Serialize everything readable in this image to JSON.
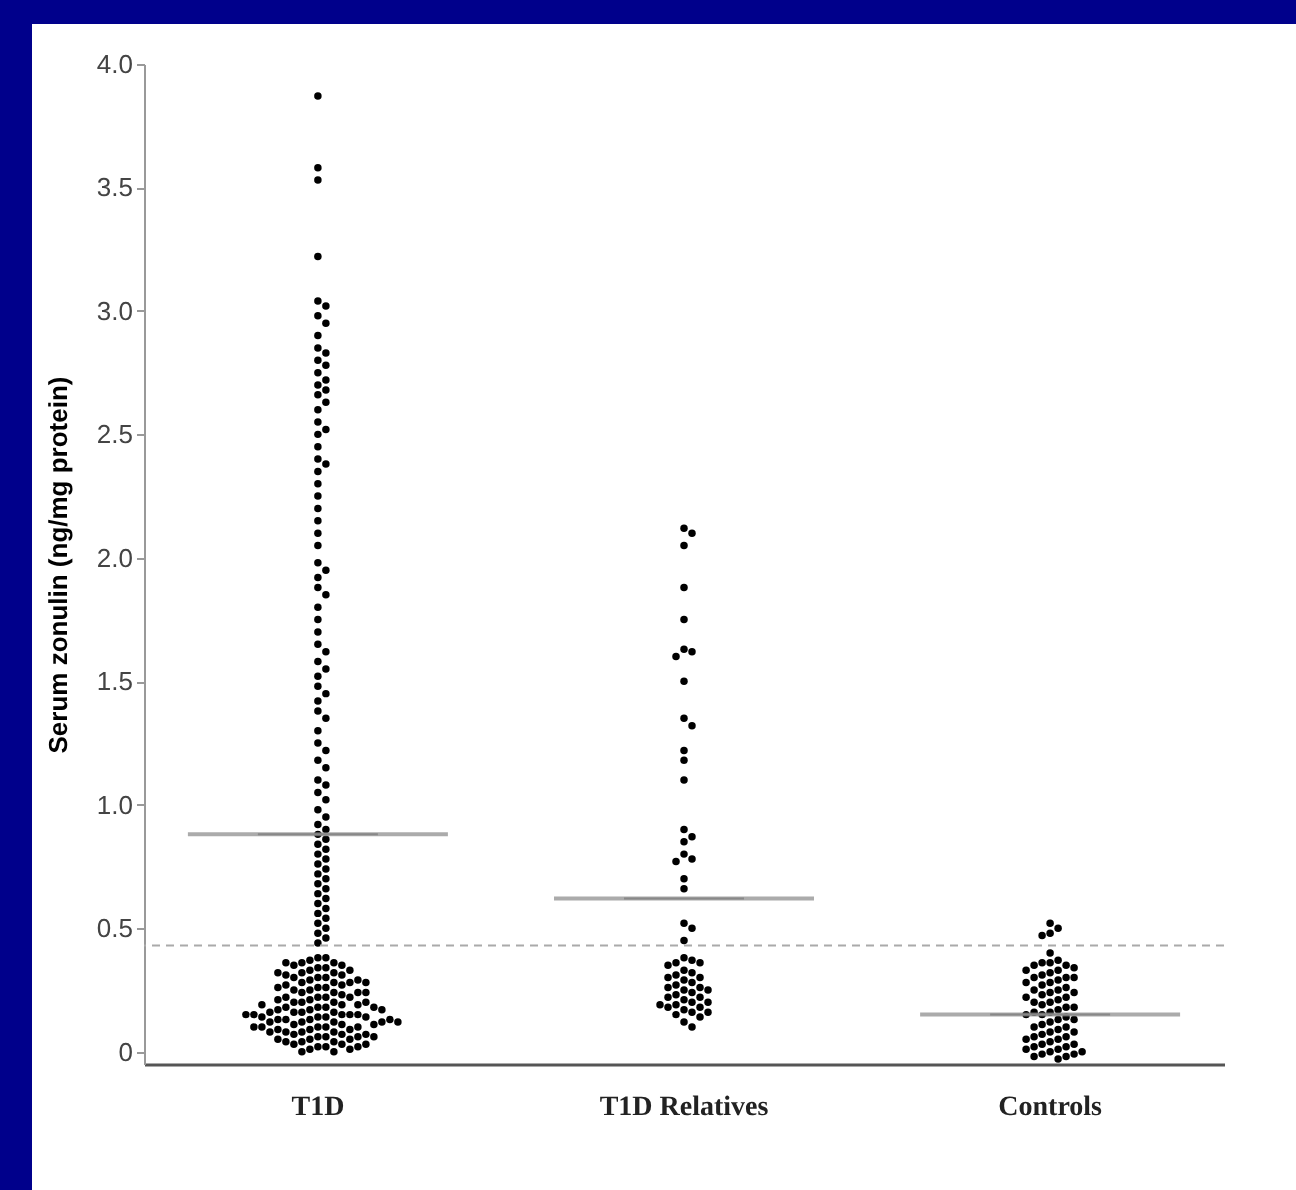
{
  "chart_data": {
    "type": "scatter",
    "ylabel": "Serum zonulin (ng/mg protein)",
    "categories": [
      "T1D",
      "T1D Relatives",
      "Controls"
    ],
    "ylim": [
      -0.05,
      4.0
    ],
    "yticks": [
      0,
      {
        "value": 0.5,
        "label": "0.5"
      },
      {
        "value": 1,
        "label": "1.0"
      },
      {
        "value": 1.5,
        "label": "1.5"
      },
      {
        "value": 2,
        "label": "2.0"
      },
      {
        "value": 2.5,
        "label": "2.5"
      },
      {
        "value": 3,
        "label": "3.0"
      },
      {
        "value": 3.5,
        "label": "3.5"
      },
      {
        "value": 4,
        "label": "4.0"
      }
    ],
    "marker": "circle",
    "ref_lines": [
      {
        "axis": "y",
        "value": 0.43,
        "label": null,
        "color": "#aaaaaa",
        "line_style": "dashed"
      }
    ],
    "series": [
      {
        "color": "#000000",
        "x": [
          "T1D",
          "T1D",
          "T1D",
          "T1D",
          "T1D",
          "T1D",
          "T1D",
          "T1D",
          "T1D",
          "T1D",
          "T1D",
          "T1D",
          "T1D",
          "T1D",
          "T1D",
          "T1D",
          "T1D",
          "T1D",
          "T1D",
          "T1D",
          "T1D",
          "T1D",
          "T1D",
          "T1D",
          "T1D",
          "T1D",
          "T1D",
          "T1D",
          "T1D",
          "T1D",
          "T1D",
          "T1D",
          "T1D",
          "T1D",
          "T1D",
          "T1D",
          "T1D",
          "T1D",
          "T1D",
          "T1D",
          "T1D",
          "T1D",
          "T1D",
          "T1D",
          "T1D",
          "T1D",
          "T1D",
          "T1D",
          "T1D",
          "T1D",
          "T1D",
          "T1D",
          "T1D",
          "T1D",
          "T1D",
          "T1D",
          "T1D",
          "T1D",
          "T1D",
          "T1D",
          "T1D",
          "T1D",
          "T1D",
          "T1D",
          "T1D",
          "T1D",
          "T1D",
          "T1D",
          "T1D",
          "T1D",
          "T1D",
          "T1D",
          "T1D",
          "T1D",
          "T1D",
          "T1D",
          "T1D",
          "T1D",
          "T1D",
          "T1D",
          "T1D",
          "T1D",
          "T1D",
          "T1D",
          "T1D",
          "T1D",
          "T1D",
          "T1D",
          "T1D",
          "T1D",
          "T1D",
          "T1D",
          "T1D",
          "T1D",
          "T1D",
          "T1D",
          "T1D",
          "T1D",
          "T1D",
          "T1D",
          "T1D",
          "T1D",
          "T1D",
          "T1D",
          "T1D",
          "T1D",
          "T1D",
          "T1D",
          "T1D",
          "T1D",
          "T1D",
          "T1D",
          "T1D",
          "T1D",
          "T1D",
          "T1D",
          "T1D",
          "T1D",
          "T1D",
          "T1D",
          "T1D",
          "T1D",
          "T1D",
          "T1D",
          "T1D",
          "T1D",
          "T1D",
          "T1D",
          "T1D",
          "T1D",
          "T1D",
          "T1D",
          "T1D",
          "T1D",
          "T1D",
          "T1D",
          "T1D",
          "T1D",
          "T1D",
          "T1D",
          "T1D",
          "T1D",
          "T1D",
          "T1D",
          "T1D",
          "T1D",
          "T1D",
          "T1D",
          "T1D",
          "T1D",
          "T1D",
          "T1D",
          "T1D",
          "T1D",
          "T1D",
          "T1D",
          "T1D",
          "T1D",
          "T1D",
          "T1D",
          "T1D",
          "T1D",
          "T1D",
          "T1D",
          "T1D",
          "T1D",
          "T1D",
          "T1D",
          "T1D",
          "T1D",
          "T1D",
          "T1D",
          "T1D",
          "T1D",
          "T1D",
          "T1D",
          "T1D",
          "T1D",
          "T1D",
          "T1D",
          "T1D",
          "T1D",
          "T1D",
          "T1D",
          "T1D",
          "T1D",
          "T1D",
          "T1D",
          "T1D",
          "T1D",
          "T1D",
          "T1D",
          "T1D",
          "T1D",
          "T1D",
          "T1D",
          "T1D",
          "T1D",
          "T1D",
          "T1D",
          "T1D",
          "T1D",
          "T1D",
          "T1D",
          "T1D"
        ],
        "values": [
          3.87,
          3.58,
          3.53,
          3.22,
          3.04,
          3.02,
          2.98,
          2.95,
          2.9,
          2.85,
          2.83,
          2.8,
          2.78,
          2.75,
          2.72,
          2.7,
          2.68,
          2.66,
          2.63,
          2.6,
          2.55,
          2.52,
          2.5,
          2.45,
          2.4,
          2.38,
          2.35,
          2.3,
          2.25,
          2.2,
          2.15,
          2.1,
          2.05,
          1.98,
          1.95,
          1.92,
          1.88,
          1.85,
          1.8,
          1.75,
          1.7,
          1.65,
          1.62,
          1.58,
          1.55,
          1.52,
          1.48,
          1.45,
          1.42,
          1.38,
          1.35,
          1.3,
          1.25,
          1.22,
          1.18,
          1.15,
          1.1,
          1.08,
          1.05,
          1.02,
          0.98,
          0.95,
          0.92,
          0.9,
          0.88,
          0.86,
          0.84,
          0.82,
          0.8,
          0.78,
          0.76,
          0.74,
          0.72,
          0.7,
          0.68,
          0.66,
          0.64,
          0.62,
          0.6,
          0.58,
          0.56,
          0.54,
          0.52,
          0.5,
          0.48,
          0.46,
          0.44,
          0.38,
          0.38,
          0.37,
          0.36,
          0.36,
          0.35,
          0.34,
          0.34,
          0.33,
          0.32,
          0.32,
          0.31,
          0.3,
          0.3,
          0.29,
          0.28,
          0.28,
          0.27,
          0.26,
          0.26,
          0.25,
          0.24,
          0.24,
          0.23,
          0.22,
          0.22,
          0.21,
          0.2,
          0.2,
          0.19,
          0.18,
          0.18,
          0.17,
          0.16,
          0.16,
          0.16,
          0.15,
          0.15,
          0.14,
          0.14,
          0.13,
          0.13,
          0.12,
          0.12,
          0.11,
          0.11,
          0.1,
          0.1,
          0.09,
          0.09,
          0.08,
          0.08,
          0.07,
          0.07,
          0.06,
          0.06,
          0.05,
          0.05,
          0.04,
          0.04,
          0.03,
          0.03,
          0.02,
          0.02,
          0.01,
          0.0,
          0.0,
          0.35,
          0.33,
          0.3,
          0.28,
          0.25,
          0.22,
          0.2,
          0.18,
          0.15,
          0.13,
          0.1,
          0.08,
          0.06,
          0.04,
          0.02,
          0.31,
          0.27,
          0.24,
          0.19,
          0.14,
          0.12,
          0.09,
          0.05,
          0.03,
          0.01,
          0.17,
          0.21,
          0.26,
          0.29,
          0.11,
          0.07,
          0.16,
          0.14,
          0.12,
          0.2,
          0.18,
          0.15,
          0.13,
          0.1,
          0.08,
          0.06,
          0.17,
          0.15,
          0.12,
          0.1,
          0.22,
          0.19,
          0.36,
          0.32,
          0.28,
          0.24
        ]
      },
      {
        "color": "#000000",
        "x": [
          "T1D Relatives",
          "T1D Relatives",
          "T1D Relatives",
          "T1D Relatives",
          "T1D Relatives",
          "T1D Relatives",
          "T1D Relatives",
          "T1D Relatives",
          "T1D Relatives",
          "T1D Relatives",
          "T1D Relatives",
          "T1D Relatives",
          "T1D Relatives",
          "T1D Relatives",
          "T1D Relatives",
          "T1D Relatives",
          "T1D Relatives",
          "T1D Relatives",
          "T1D Relatives",
          "T1D Relatives",
          "T1D Relatives",
          "T1D Relatives",
          "T1D Relatives",
          "T1D Relatives",
          "T1D Relatives",
          "T1D Relatives",
          "T1D Relatives",
          "T1D Relatives",
          "T1D Relatives",
          "T1D Relatives",
          "T1D Relatives",
          "T1D Relatives",
          "T1D Relatives",
          "T1D Relatives",
          "T1D Relatives",
          "T1D Relatives",
          "T1D Relatives",
          "T1D Relatives",
          "T1D Relatives",
          "T1D Relatives",
          "T1D Relatives",
          "T1D Relatives",
          "T1D Relatives",
          "T1D Relatives",
          "T1D Relatives",
          "T1D Relatives",
          "T1D Relatives",
          "T1D Relatives",
          "T1D Relatives",
          "T1D Relatives",
          "T1D Relatives",
          "T1D Relatives",
          "T1D Relatives",
          "T1D Relatives",
          "T1D Relatives",
          "T1D Relatives",
          "T1D Relatives",
          "T1D Relatives",
          "T1D Relatives",
          "T1D Relatives"
        ],
        "values": [
          2.12,
          2.1,
          2.05,
          1.88,
          1.75,
          1.63,
          1.62,
          1.6,
          1.5,
          1.35,
          1.32,
          1.22,
          1.18,
          1.1,
          0.9,
          0.87,
          0.85,
          0.8,
          0.78,
          0.77,
          0.7,
          0.66,
          0.52,
          0.5,
          0.45,
          0.38,
          0.37,
          0.36,
          0.36,
          0.35,
          0.33,
          0.32,
          0.31,
          0.3,
          0.3,
          0.29,
          0.28,
          0.27,
          0.26,
          0.26,
          0.25,
          0.25,
          0.24,
          0.23,
          0.22,
          0.22,
          0.21,
          0.2,
          0.2,
          0.19,
          0.19,
          0.18,
          0.18,
          0.17,
          0.16,
          0.16,
          0.15,
          0.14,
          0.12,
          0.1
        ]
      },
      {
        "color": "#000000",
        "x": [
          "Controls",
          "Controls",
          "Controls",
          "Controls",
          "Controls",
          "Controls",
          "Controls",
          "Controls",
          "Controls",
          "Controls",
          "Controls",
          "Controls",
          "Controls",
          "Controls",
          "Controls",
          "Controls",
          "Controls",
          "Controls",
          "Controls",
          "Controls",
          "Controls",
          "Controls",
          "Controls",
          "Controls",
          "Controls",
          "Controls",
          "Controls",
          "Controls",
          "Controls",
          "Controls",
          "Controls",
          "Controls",
          "Controls",
          "Controls",
          "Controls",
          "Controls",
          "Controls",
          "Controls",
          "Controls",
          "Controls",
          "Controls",
          "Controls",
          "Controls",
          "Controls",
          "Controls",
          "Controls",
          "Controls",
          "Controls",
          "Controls",
          "Controls",
          "Controls",
          "Controls",
          "Controls",
          "Controls",
          "Controls",
          "Controls",
          "Controls",
          "Controls",
          "Controls",
          "Controls",
          "Controls",
          "Controls",
          "Controls",
          "Controls",
          "Controls",
          "Controls",
          "Controls",
          "Controls",
          "Controls",
          "Controls"
        ],
        "values": [
          0.52,
          0.5,
          0.48,
          0.47,
          0.4,
          0.37,
          0.36,
          0.36,
          0.35,
          0.35,
          0.34,
          0.33,
          0.33,
          0.32,
          0.31,
          0.3,
          0.3,
          0.3,
          0.29,
          0.28,
          0.28,
          0.27,
          0.26,
          0.25,
          0.25,
          0.24,
          0.24,
          0.23,
          0.22,
          0.22,
          0.21,
          0.2,
          0.2,
          0.19,
          0.18,
          0.18,
          0.17,
          0.16,
          0.16,
          0.15,
          0.15,
          0.14,
          0.13,
          0.13,
          0.12,
          0.11,
          0.1,
          0.1,
          0.09,
          0.08,
          0.08,
          0.07,
          0.06,
          0.06,
          0.05,
          0.05,
          0.04,
          0.03,
          0.03,
          0.02,
          0.02,
          0.01,
          0.01,
          0.0,
          0.0,
          -0.01,
          -0.01,
          -0.02,
          -0.02,
          -0.03
        ]
      },
      {
        "type": "box",
        "color": "#888888",
        "boxes": [
          {
            "low": 0.88,
            "q1": 0.88,
            "median": 0.88,
            "q3": 0.88,
            "high": 0.88
          },
          {
            "low": 0.62,
            "q1": 0.62,
            "median": 0.62,
            "q3": 0.62,
            "high": 0.62
          },
          {
            "low": 0.15,
            "q1": 0.15,
            "median": 0.15,
            "q3": 0.15,
            "high": 0.15
          }
        ]
      }
    ]
  }
}
